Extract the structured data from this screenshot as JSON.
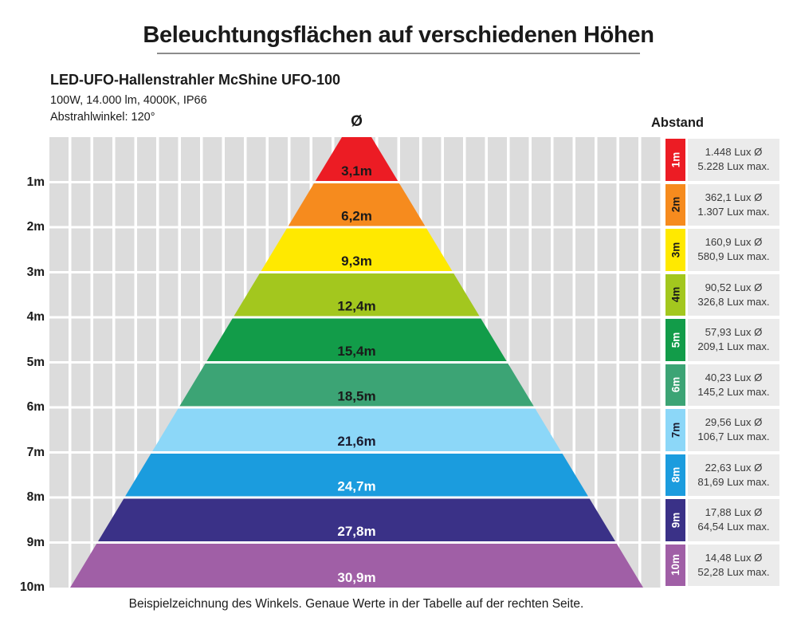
{
  "title": "Beleuchtungsflächen auf verschiedenen Höhen",
  "product": {
    "name": "LED-UFO-Hallenstrahler McShine UFO-100",
    "specs": "100W, 14.000 lm, 4000K, IP66",
    "beam_angle": "Abstrahlwinkel: 120°"
  },
  "footer_note": "Beispielzeichnung des Winkels. Genaue Werte in der Tabelle auf der rechten Seite.",
  "colors": {
    "grid_gray": "#dcdcdc",
    "table_box_gray": "#ebebeb",
    "title_underline": "#8c8c8c"
  },
  "chart_data": {
    "type": "bar",
    "variant": "stacked-pyramid-beam-diagram",
    "title": "Beleuchtungsflächen auf verschiedenen Höhen",
    "xlabel": "Ø",
    "ylabel": "Abstand",
    "grid": true,
    "legend_position": "right-table",
    "distances_m": [
      1,
      2,
      3,
      4,
      5,
      6,
      7,
      8,
      9,
      10
    ],
    "diameters_m": [
      3.1,
      6.2,
      9.3,
      12.4,
      15.4,
      18.5,
      21.6,
      24.7,
      27.8,
      30.9
    ],
    "lux_avg_values": [
      1448,
      362.1,
      160.9,
      90.52,
      57.93,
      40.23,
      29.56,
      22.63,
      17.88,
      14.48
    ],
    "lux_max_values": [
      5228,
      1307,
      580.9,
      326.8,
      209.1,
      145.2,
      106.7,
      81.69,
      64.54,
      52.28
    ],
    "rows": [
      {
        "distance_label": "1m",
        "diameter_label": "3,1m",
        "lux_avg": "1.448 Lux Ø",
        "lux_max": "5.228 Lux max.",
        "color": "#ec1c24",
        "cell_text": "#ffffff",
        "band_text": "#1a1a1a"
      },
      {
        "distance_label": "2m",
        "diameter_label": "6,2m",
        "lux_avg": "362,1 Lux Ø",
        "lux_max": "1.307 Lux max.",
        "color": "#f68b1e",
        "cell_text": "#1a1a1a",
        "band_text": "#1a1a1a"
      },
      {
        "distance_label": "3m",
        "diameter_label": "9,3m",
        "lux_avg": "160,9 Lux Ø",
        "lux_max": "580,9 Lux max.",
        "color": "#ffe900",
        "cell_text": "#1a1a1a",
        "band_text": "#1a1a1a"
      },
      {
        "distance_label": "4m",
        "diameter_label": "12,4m",
        "lux_avg": "90,52 Lux Ø",
        "lux_max": "326,8 Lux max.",
        "color": "#a3c71e",
        "cell_text": "#1a1a1a",
        "band_text": "#1a1a1a"
      },
      {
        "distance_label": "5m",
        "diameter_label": "15,4m",
        "lux_avg": "57,93 Lux Ø",
        "lux_max": "209,1 Lux max.",
        "color": "#129c49",
        "cell_text": "#ffffff",
        "band_text": "#1a1a1a"
      },
      {
        "distance_label": "6m",
        "diameter_label": "18,5m",
        "lux_avg": "40,23 Lux Ø",
        "lux_max": "145,2 Lux max.",
        "color": "#3ca475",
        "cell_text": "#ffffff",
        "band_text": "#1a1a1a"
      },
      {
        "distance_label": "7m",
        "diameter_label": "21,6m",
        "lux_avg": "29,56 Lux Ø",
        "lux_max": "106,7 Lux max.",
        "color": "#8cd7f8",
        "cell_text": "#1a1a2e",
        "band_text": "#1a1a2e"
      },
      {
        "distance_label": "8m",
        "diameter_label": "24,7m",
        "lux_avg": "22,63 Lux Ø",
        "lux_max": "81,69 Lux max.",
        "color": "#1b9cde",
        "cell_text": "#ffffff",
        "band_text": "#ffffff"
      },
      {
        "distance_label": "9m",
        "diameter_label": "27,8m",
        "lux_avg": "17,88 Lux Ø",
        "lux_max": "64,54 Lux max.",
        "color": "#3a3187",
        "cell_text": "#ffffff",
        "band_text": "#ffffff"
      },
      {
        "distance_label": "10m",
        "diameter_label": "30,9m",
        "lux_avg": "14,48 Lux Ø",
        "lux_max": "52,28 Lux max.",
        "color": "#a05fa6",
        "cell_text": "#ffffff",
        "band_text": "#ffffff"
      }
    ]
  }
}
